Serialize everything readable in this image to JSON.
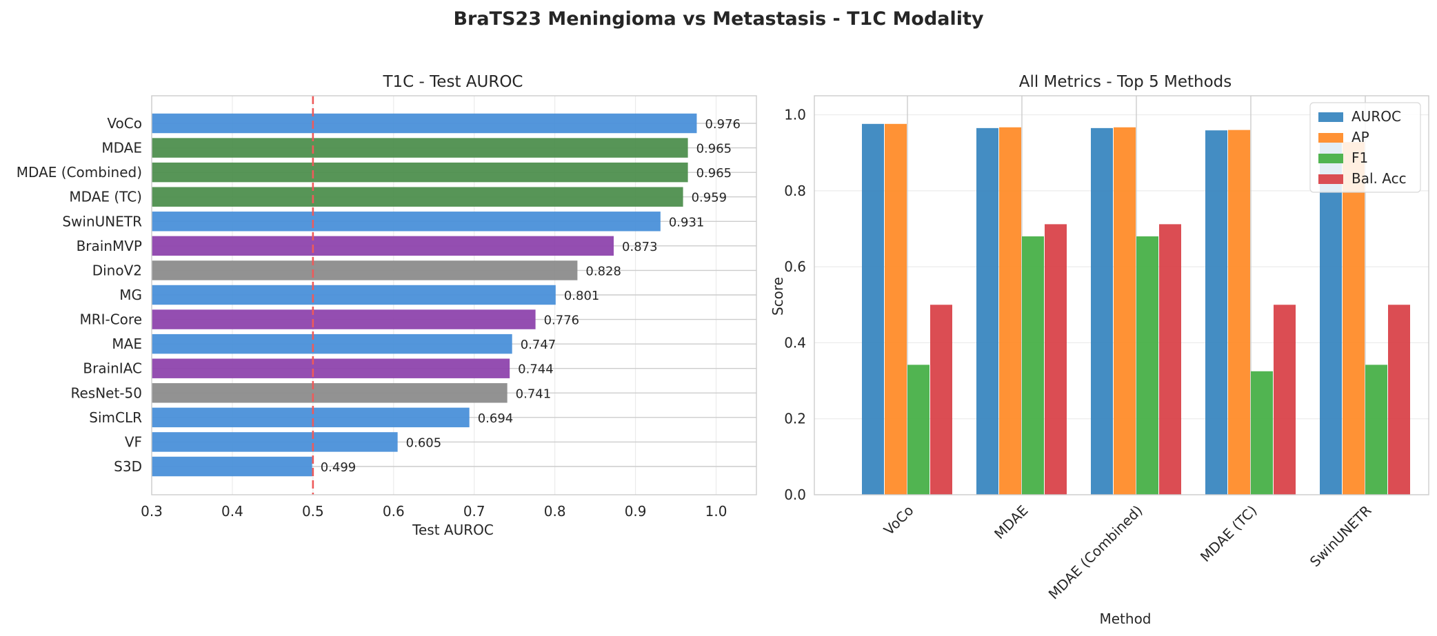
{
  "figure_title": "BraTS23 Meningioma vs Metastasis - T1C Modality",
  "colors": {
    "blue": "#4a90d9",
    "gray": "#8c8c8c",
    "purple": "#8e44ad",
    "green": "#4e8f4e",
    "auroc": "#3a87c0",
    "ap": "#ff8c2a",
    "f1": "#48b048",
    "bal_acc": "#d9434a",
    "reference_line": "#ee5a5a"
  },
  "chart_data": [
    {
      "type": "bar",
      "orientation": "horizontal",
      "title": "T1C - Test AUROC",
      "xlabel": "Test AUROC",
      "ylabel": "",
      "xlim": [
        0.3,
        1.05
      ],
      "xticks": [
        "0.3",
        "0.4",
        "0.5",
        "0.6",
        "0.7",
        "0.8",
        "0.9",
        "1.0"
      ],
      "reference_line": 0.5,
      "grid": true,
      "categories": [
        "S3D",
        "VF",
        "SimCLR",
        "ResNet-50",
        "BrainIAC",
        "MAE",
        "MRI-Core",
        "MG",
        "DinoV2",
        "BrainMVP",
        "SwinUNETR",
        "MDAE (TC)",
        "MDAE (Combined)",
        "MDAE",
        "VoCo"
      ],
      "values": [
        0.499,
        0.605,
        0.694,
        0.741,
        0.744,
        0.747,
        0.776,
        0.801,
        0.828,
        0.873,
        0.931,
        0.959,
        0.965,
        0.965,
        0.976
      ],
      "value_labels": [
        "0.499",
        "0.605",
        "0.694",
        "0.741",
        "0.744",
        "0.747",
        "0.776",
        "0.801",
        "0.828",
        "0.873",
        "0.931",
        "0.959",
        "0.965",
        "0.965",
        "0.976"
      ],
      "bar_colors": [
        "blue",
        "blue",
        "blue",
        "gray",
        "purple",
        "blue",
        "purple",
        "blue",
        "gray",
        "purple",
        "blue",
        "green",
        "green",
        "green",
        "blue"
      ]
    },
    {
      "type": "bar",
      "title": "All Metrics - Top 5 Methods",
      "xlabel": "Method",
      "ylabel": "Score",
      "ylim": [
        0,
        1.05
      ],
      "yticks": [
        "0.0",
        "0.2",
        "0.4",
        "0.6",
        "0.8",
        "1.0"
      ],
      "grid": true,
      "legend_position": "top-right",
      "categories": [
        "VoCo",
        "MDAE",
        "MDAE (Combined)",
        "MDAE (TC)",
        "SwinUNETR"
      ],
      "series": [
        {
          "name": "AUROC",
          "color": "auroc",
          "values": [
            0.976,
            0.965,
            0.965,
            0.959,
            0.931
          ]
        },
        {
          "name": "AP",
          "color": "ap",
          "values": [
            0.976,
            0.967,
            0.967,
            0.96,
            0.928
          ]
        },
        {
          "name": "F1",
          "color": "f1",
          "values": [
            0.342,
            0.68,
            0.68,
            0.325,
            0.342
          ]
        },
        {
          "name": "Bal. Acc",
          "color": "bal_acc",
          "values": [
            0.5,
            0.712,
            0.712,
            0.5,
            0.5
          ]
        }
      ]
    }
  ]
}
